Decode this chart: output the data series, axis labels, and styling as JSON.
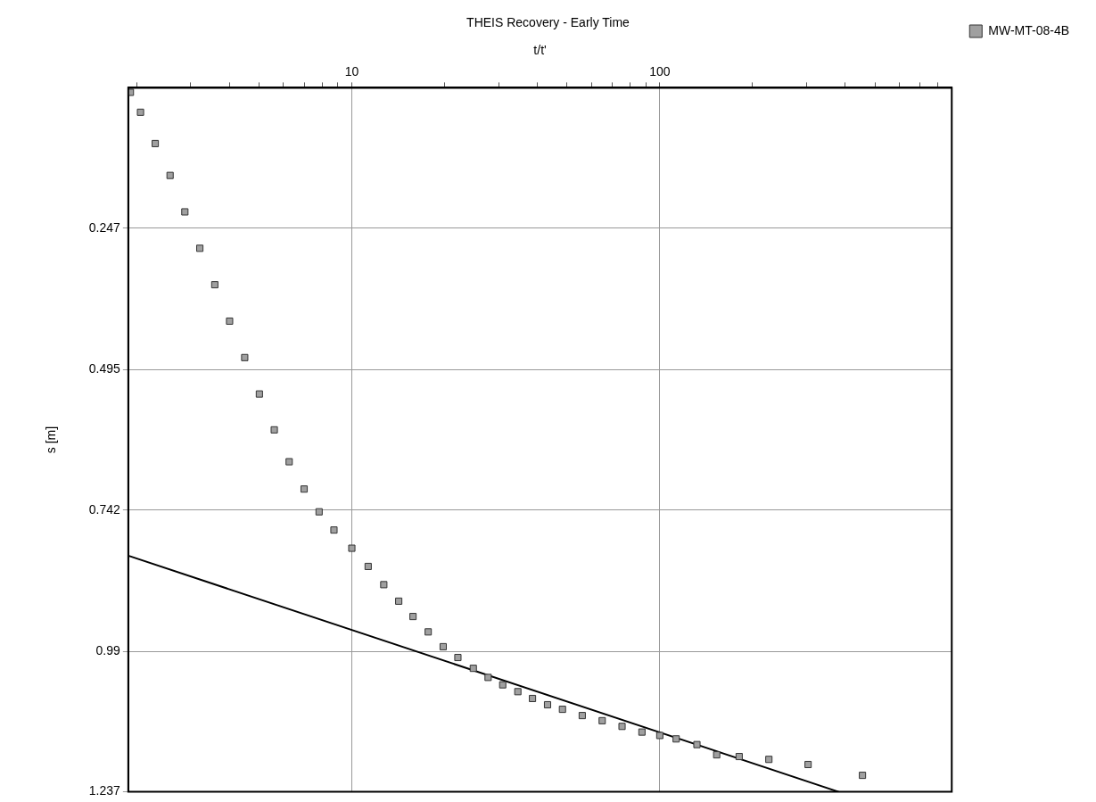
{
  "chart_data": {
    "type": "scatter",
    "title": "THEIS Recovery - Early Time",
    "xlabel": "t/t'",
    "ylabel": "s [m]",
    "log": "x",
    "grid": true,
    "legend": "top right",
    "marker": "square",
    "xlim": [
      1.88,
      887
    ],
    "xticks": [
      {
        "value": 2,
        "label": null
      },
      {
        "value": 3,
        "label": null
      },
      {
        "value": 4,
        "label": null
      },
      {
        "value": 5,
        "label": null
      },
      {
        "value": 6,
        "label": null
      },
      {
        "value": 7,
        "label": null
      },
      {
        "value": 8,
        "label": null
      },
      {
        "value": 9,
        "label": null
      },
      10,
      {
        "value": 20,
        "label": null
      },
      {
        "value": 30,
        "label": null
      },
      {
        "value": 40,
        "label": null
      },
      {
        "value": 50,
        "label": null
      },
      {
        "value": 60,
        "label": null
      },
      {
        "value": 70,
        "label": null
      },
      {
        "value": 80,
        "label": null
      },
      {
        "value": 90,
        "label": null
      },
      100,
      {
        "value": 200,
        "label": null
      },
      {
        "value": 300,
        "label": null
      },
      {
        "value": 400,
        "label": null
      },
      {
        "value": 500,
        "label": null
      },
      {
        "value": 600,
        "label": null
      },
      {
        "value": 700,
        "label": null
      },
      {
        "value": 800,
        "label": null
      }
    ],
    "ylim": [
      1.237,
      0
    ],
    "yticks": [
      0.247,
      0.495,
      0.742,
      0.99,
      1.237
    ],
    "series": [
      {
        "name": "MW-MT-08-4B",
        "color": "#a0a0a0",
        "x": [
          1.91,
          2.06,
          2.3,
          2.57,
          2.87,
          3.21,
          3.59,
          4.01,
          4.49,
          5.01,
          5.6,
          6.26,
          7.0,
          7.83,
          8.75,
          10,
          11.3,
          12.7,
          14.2,
          15.8,
          17.7,
          19.8,
          22.1,
          24.8,
          27.7,
          30.9,
          34.6,
          38.6,
          43.2,
          48.3,
          56,
          65,
          75.4,
          87.5,
          100,
          113,
          132,
          153,
          181,
          226,
          303,
          455
        ],
        "values": [
          0.008,
          0.043,
          0.098,
          0.154,
          0.218,
          0.282,
          0.346,
          0.41,
          0.474,
          0.538,
          0.601,
          0.657,
          0.705,
          0.745,
          0.777,
          0.809,
          0.841,
          0.873,
          0.902,
          0.929,
          0.956,
          0.982,
          1.001,
          1.02,
          1.036,
          1.049,
          1.061,
          1.073,
          1.084,
          1.092,
          1.103,
          1.112,
          1.122,
          1.132,
          1.138,
          1.144,
          1.154,
          1.172,
          1.175,
          1.18,
          1.189,
          1.208
        ]
      },
      {
        "type": "line",
        "color": "#000000",
        "marker": "none",
        "x": [
          1.88,
          381
        ],
        "values": [
          0.822,
          1.237
        ]
      }
    ]
  }
}
